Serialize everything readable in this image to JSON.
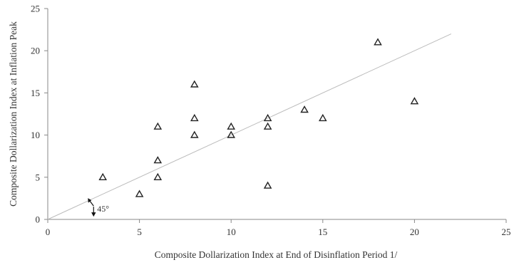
{
  "chart_data": {
    "type": "scatter",
    "xlabel": "Composite Dollarization Index at End of Disinflation Period  1/",
    "ylabel": "Composite Dollarization Index at Inflation Peak",
    "xlim": [
      0,
      25
    ],
    "ylim": [
      0,
      25
    ],
    "xticks": [
      "0",
      "5",
      "10",
      "15",
      "20",
      "25"
    ],
    "yticks": [
      "0",
      "5",
      "10",
      "15",
      "20",
      "25"
    ],
    "grid": false,
    "marker": "open-triangle",
    "points": [
      {
        "x": 3,
        "y": 5
      },
      {
        "x": 5,
        "y": 3
      },
      {
        "x": 6,
        "y": 11
      },
      {
        "x": 6,
        "y": 7
      },
      {
        "x": 6,
        "y": 5
      },
      {
        "x": 8,
        "y": 16
      },
      {
        "x": 8,
        "y": 12
      },
      {
        "x": 8,
        "y": 10
      },
      {
        "x": 10,
        "y": 11
      },
      {
        "x": 10,
        "y": 10
      },
      {
        "x": 12,
        "y": 12
      },
      {
        "x": 12,
        "y": 11
      },
      {
        "x": 12,
        "y": 4
      },
      {
        "x": 14,
        "y": 13
      },
      {
        "x": 15,
        "y": 12
      },
      {
        "x": 18,
        "y": 21
      },
      {
        "x": 20,
        "y": 14
      }
    ],
    "reference_line": {
      "from": [
        0,
        0
      ],
      "to": [
        22,
        22
      ]
    },
    "annotation": {
      "text": "45°",
      "x": 2.5,
      "y": 1
    },
    "colors": {
      "line": "#bbbbbb",
      "marker": "#222222",
      "axis": "#888888"
    }
  }
}
